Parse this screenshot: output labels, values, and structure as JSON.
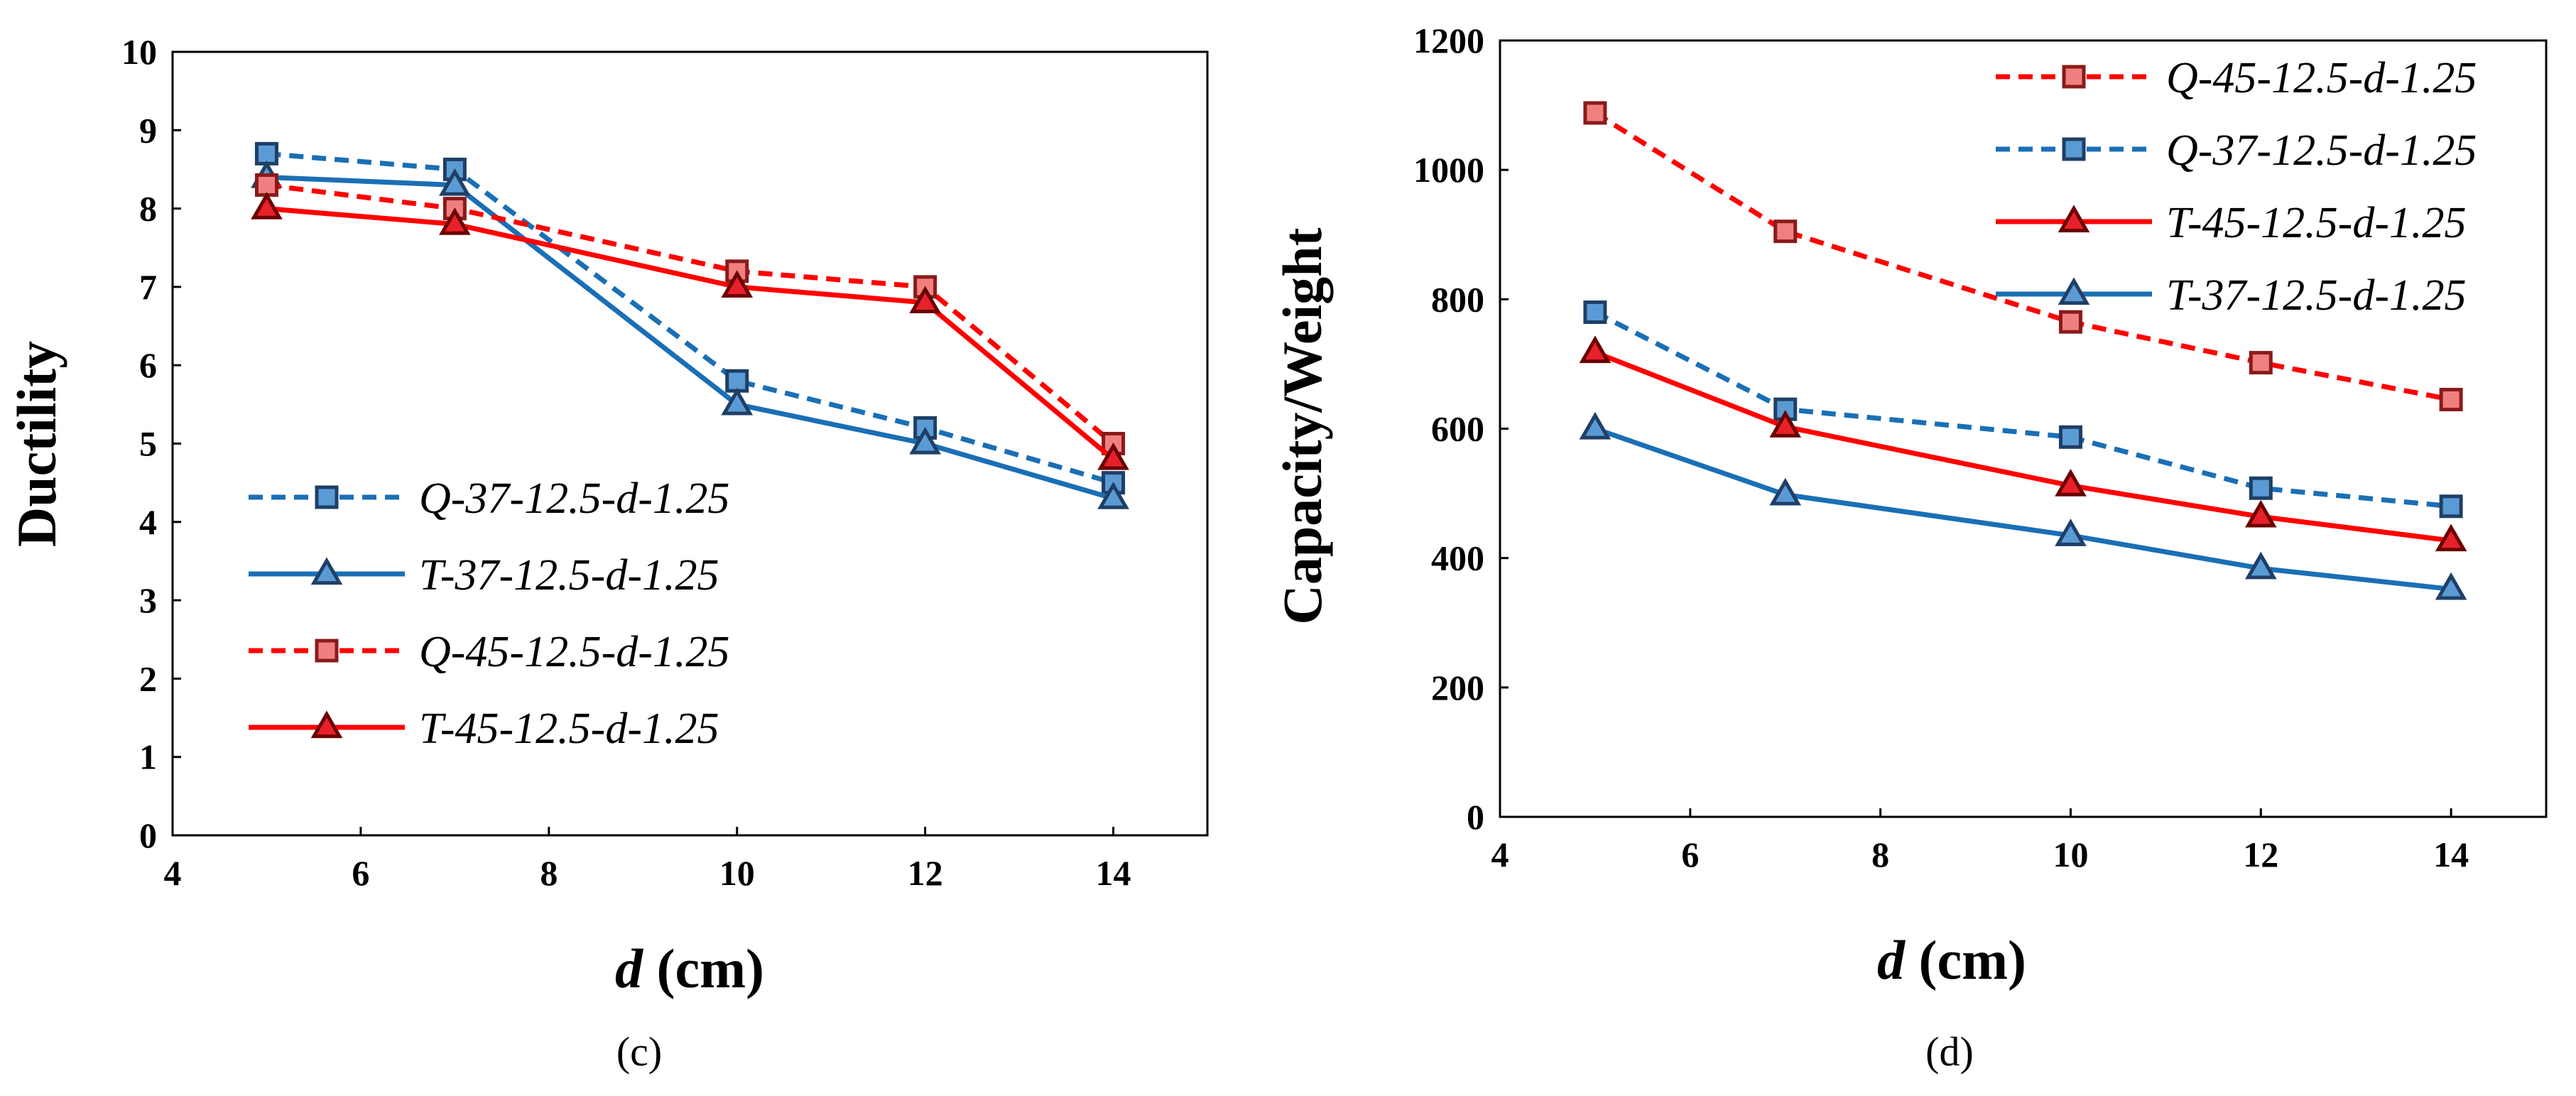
{
  "chart_data": [
    {
      "type": "line",
      "panel_label": "(c)",
      "xlabel_var": "d",
      "xlabel_unit": " (cm)",
      "ylabel": "Ductility",
      "xlim": [
        4,
        15
      ],
      "ylim": [
        0,
        10
      ],
      "x_ticks": [
        "4",
        "6",
        "8",
        "10",
        "12",
        "14"
      ],
      "y_ticks": [
        "0",
        "1",
        "2",
        "3",
        "4",
        "5",
        "6",
        "7",
        "8",
        "9",
        "10"
      ],
      "x": [
        5,
        7,
        10,
        12,
        14
      ],
      "grid": false,
      "legend_position": "bottom-left",
      "series": [
        {
          "name": "Q-37-12.5-d-1.25",
          "values": [
            8.7,
            8.5,
            5.8,
            5.2,
            4.5
          ],
          "color": "#1a6fb5",
          "fill": "#5b9bd5",
          "marker": "square",
          "dashed": true
        },
        {
          "name": "T-37-12.5-d-1.25",
          "values": [
            8.4,
            8.3,
            5.5,
            5.0,
            4.3
          ],
          "color": "#1a6fb5",
          "fill": "#5b9bd5",
          "marker": "triangle",
          "dashed": false
        },
        {
          "name": "Q-45-12.5-d-1.25",
          "values": [
            8.3,
            8.0,
            7.2,
            7.0,
            5.0
          ],
          "color": "#ff0000",
          "fill": "#f08080",
          "marker": "square",
          "dashed": true
        },
        {
          "name": "T-45-12.5-d-1.25",
          "values": [
            8.0,
            7.8,
            7.0,
            6.8,
            4.8
          ],
          "color": "#ff0000",
          "fill": "#e8202a",
          "marker": "triangle",
          "dashed": false
        }
      ]
    },
    {
      "type": "line",
      "panel_label": "(d)",
      "xlabel_var": "d",
      "xlabel_unit": " (cm)",
      "ylabel": "Capacity/Weight",
      "xlim": [
        4,
        15
      ],
      "ylim": [
        0,
        1200
      ],
      "x_ticks": [
        "4",
        "6",
        "8",
        "10",
        "12",
        "14"
      ],
      "y_ticks": [
        "0",
        "200",
        "400",
        "600",
        "800",
        "1000",
        "1200"
      ],
      "x": [
        5,
        7,
        10,
        12,
        14
      ],
      "grid": false,
      "legend_position": "top-right",
      "series": [
        {
          "name": "Q-45-12.5-d-1.25",
          "values": [
            1088,
            905,
            765,
            702,
            645
          ],
          "color": "#ff0000",
          "fill": "#f08080",
          "marker": "square",
          "dashed": true
        },
        {
          "name": "Q-37-12.5-d-1.25",
          "values": [
            780,
            630,
            587,
            508,
            480
          ],
          "color": "#1a6fb5",
          "fill": "#5b9bd5",
          "marker": "square",
          "dashed": true
        },
        {
          "name": "T-45-12.5-d-1.25",
          "values": [
            718,
            603,
            512,
            464,
            427
          ],
          "color": "#ff0000",
          "fill": "#e8202a",
          "marker": "triangle",
          "dashed": false
        },
        {
          "name": "T-37-12.5-d-1.25",
          "values": [
            600,
            498,
            435,
            384,
            352
          ],
          "color": "#1a6fb5",
          "fill": "#5b9bd5",
          "marker": "triangle",
          "dashed": false
        }
      ]
    }
  ]
}
